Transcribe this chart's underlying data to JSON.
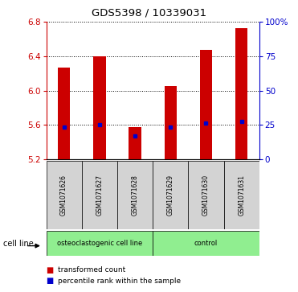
{
  "title": "GDS5398 / 10339031",
  "samples": [
    "GSM1071626",
    "GSM1071627",
    "GSM1071628",
    "GSM1071629",
    "GSM1071630",
    "GSM1071631"
  ],
  "bar_tops": [
    6.27,
    6.4,
    5.57,
    6.05,
    6.47,
    6.73
  ],
  "bar_bottom": 5.2,
  "percentile_values": [
    5.57,
    5.6,
    5.47,
    5.57,
    5.62,
    5.64
  ],
  "ylim_left": [
    5.2,
    6.8
  ],
  "ylim_right": [
    0,
    100
  ],
  "yticks_left": [
    5.2,
    5.6,
    6.0,
    6.4,
    6.8
  ],
  "yticks_right": [
    0,
    25,
    50,
    75,
    100
  ],
  "ytick_right_labels": [
    "0",
    "25",
    "50",
    "75",
    "100%"
  ],
  "bar_color": "#cc0000",
  "percentile_color": "#0000cc",
  "bar_width": 0.35,
  "left_axis_color": "#cc0000",
  "right_axis_color": "#0000cc",
  "cell_line_label": "cell line",
  "group_boundaries": [
    [
      0,
      2,
      "osteoclastogenic cell line"
    ],
    [
      3,
      5,
      "control"
    ]
  ],
  "group_color": "#90ee90",
  "sample_box_color": "#d3d3d3",
  "legend_entries": [
    {
      "color": "#cc0000",
      "label": "transformed count"
    },
    {
      "color": "#0000cc",
      "label": "percentile rank within the sample"
    }
  ]
}
